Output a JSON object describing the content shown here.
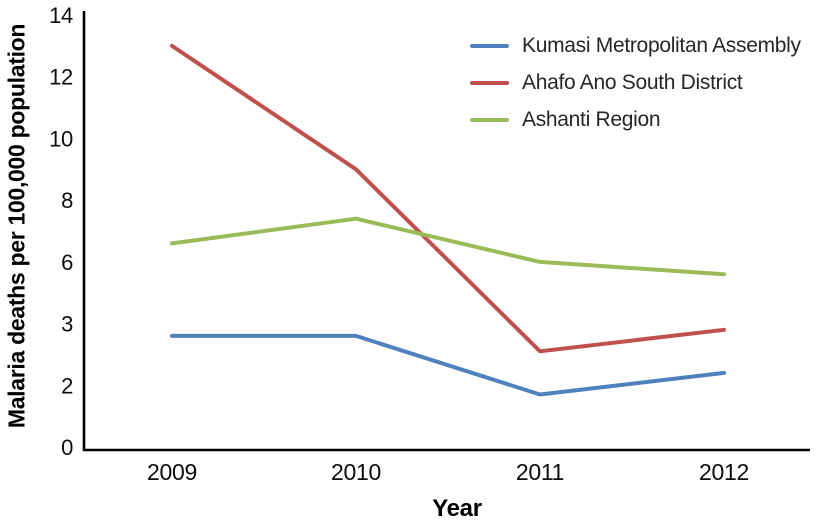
{
  "chart_data": {
    "type": "line",
    "title": "",
    "xlabel": "Year",
    "ylabel": "Malaria deaths per 100,000 population",
    "x": [
      2009,
      2010,
      2011,
      2012
    ],
    "x_tick_labels": [
      "2009",
      "2010",
      "2011",
      "2012"
    ],
    "y_tick_labels": [
      "0",
      "2",
      "3",
      "6",
      "8",
      "10",
      "12",
      "14"
    ],
    "y_tick_values": [
      0,
      2,
      3,
      6,
      8,
      10,
      12,
      14
    ],
    "ylim": [
      0,
      14
    ],
    "grid": false,
    "legend_position": "top-right",
    "axis_color": "#000000",
    "background_color": "#ffffff",
    "series": [
      {
        "name": "Kumasi Metropolitan Assembly",
        "color": "#4f81bd",
        "values": [
          2.8,
          2.8,
          1.7,
          2.2
        ]
      },
      {
        "name": "Ahafo Ano South District",
        "color": "#c0504d",
        "values": [
          13.0,
          9.0,
          2.55,
          2.9
        ]
      },
      {
        "name": "Ashanti Region",
        "color": "#9bbb59",
        "values": [
          6.6,
          7.4,
          6.0,
          5.4
        ]
      }
    ]
  }
}
